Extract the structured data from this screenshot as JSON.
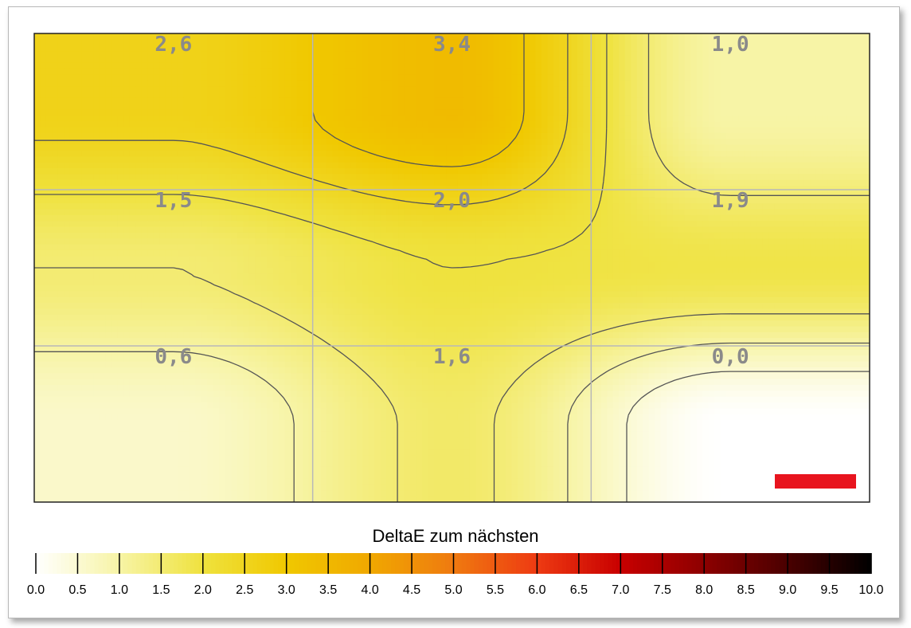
{
  "chart_data": {
    "type": "heatmap",
    "title": "",
    "grid_rows": 3,
    "grid_cols": 3,
    "values": [
      [
        2.6,
        3.4,
        1.0
      ],
      [
        1.5,
        2.0,
        1.9
      ],
      [
        0.6,
        1.6,
        0.0
      ]
    ],
    "cell_labels": [
      [
        "2,6",
        "3,4",
        "1,0"
      ],
      [
        "1,5",
        "2,0",
        "1,9"
      ],
      [
        "0,6",
        "1,6",
        "0,0"
      ]
    ],
    "grid": true,
    "colorbar": {
      "title": "DeltaE zum nächsten",
      "range": [
        0,
        10
      ],
      "ticks": [
        "0.0",
        "0.5",
        "1.0",
        "1.5",
        "2.0",
        "2.5",
        "3.0",
        "3.5",
        "4.0",
        "4.5",
        "5.0",
        "5.5",
        "6.0",
        "6.5",
        "7.0",
        "7.5",
        "8.0",
        "8.5",
        "9.0",
        "9.5",
        "10.0"
      ],
      "stops": [
        {
          "v": 0.0,
          "color": "#ffffff"
        },
        {
          "v": 1.0,
          "color": "#f7f4a6"
        },
        {
          "v": 2.0,
          "color": "#efe23e"
        },
        {
          "v": 3.0,
          "color": "#f0c800"
        },
        {
          "v": 4.0,
          "color": "#f0a800"
        },
        {
          "v": 5.0,
          "color": "#ef7a10"
        },
        {
          "v": 6.0,
          "color": "#ee3a12"
        },
        {
          "v": 7.0,
          "color": "#c80000"
        },
        {
          "v": 8.0,
          "color": "#8c0000"
        },
        {
          "v": 9.0,
          "color": "#4a0000"
        },
        {
          "v": 10.0,
          "color": "#000000"
        }
      ]
    },
    "contour_color": "#555555"
  },
  "colors": {
    "grid_line": "#b8b8b8",
    "marker_red": "#e8141e"
  }
}
